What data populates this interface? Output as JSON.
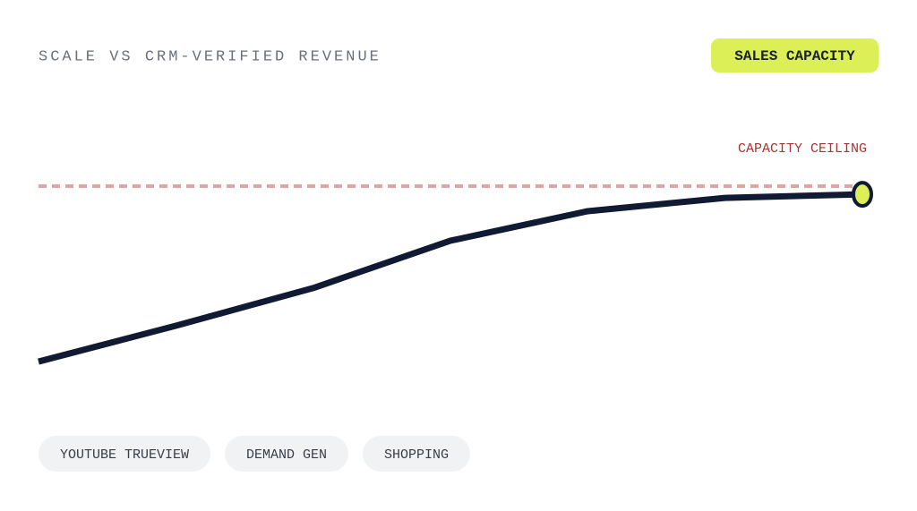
{
  "chart_data": {
    "type": "line",
    "title": "SCALE VS CRM-VERIFIED REVENUE",
    "badge": "SALES CAPACITY",
    "categories": [
      null,
      null,
      null,
      null,
      null,
      null,
      null
    ],
    "series": [
      {
        "color": "#111a33",
        "values": [
          22.2,
          38.1,
          54.8,
          75.8,
          88.9,
          94.8,
          96.4
        ]
      }
    ],
    "ceiling": {
      "label": "CAPACITY CEILING",
      "value": 100,
      "color": "#e0a4a4"
    },
    "ylim": [
      0,
      110
    ],
    "marker_color": "#dcef57",
    "tags": [
      "YOUTUBE TRUEVIEW",
      "DEMAND GEN",
      "SHOPPING"
    ]
  }
}
